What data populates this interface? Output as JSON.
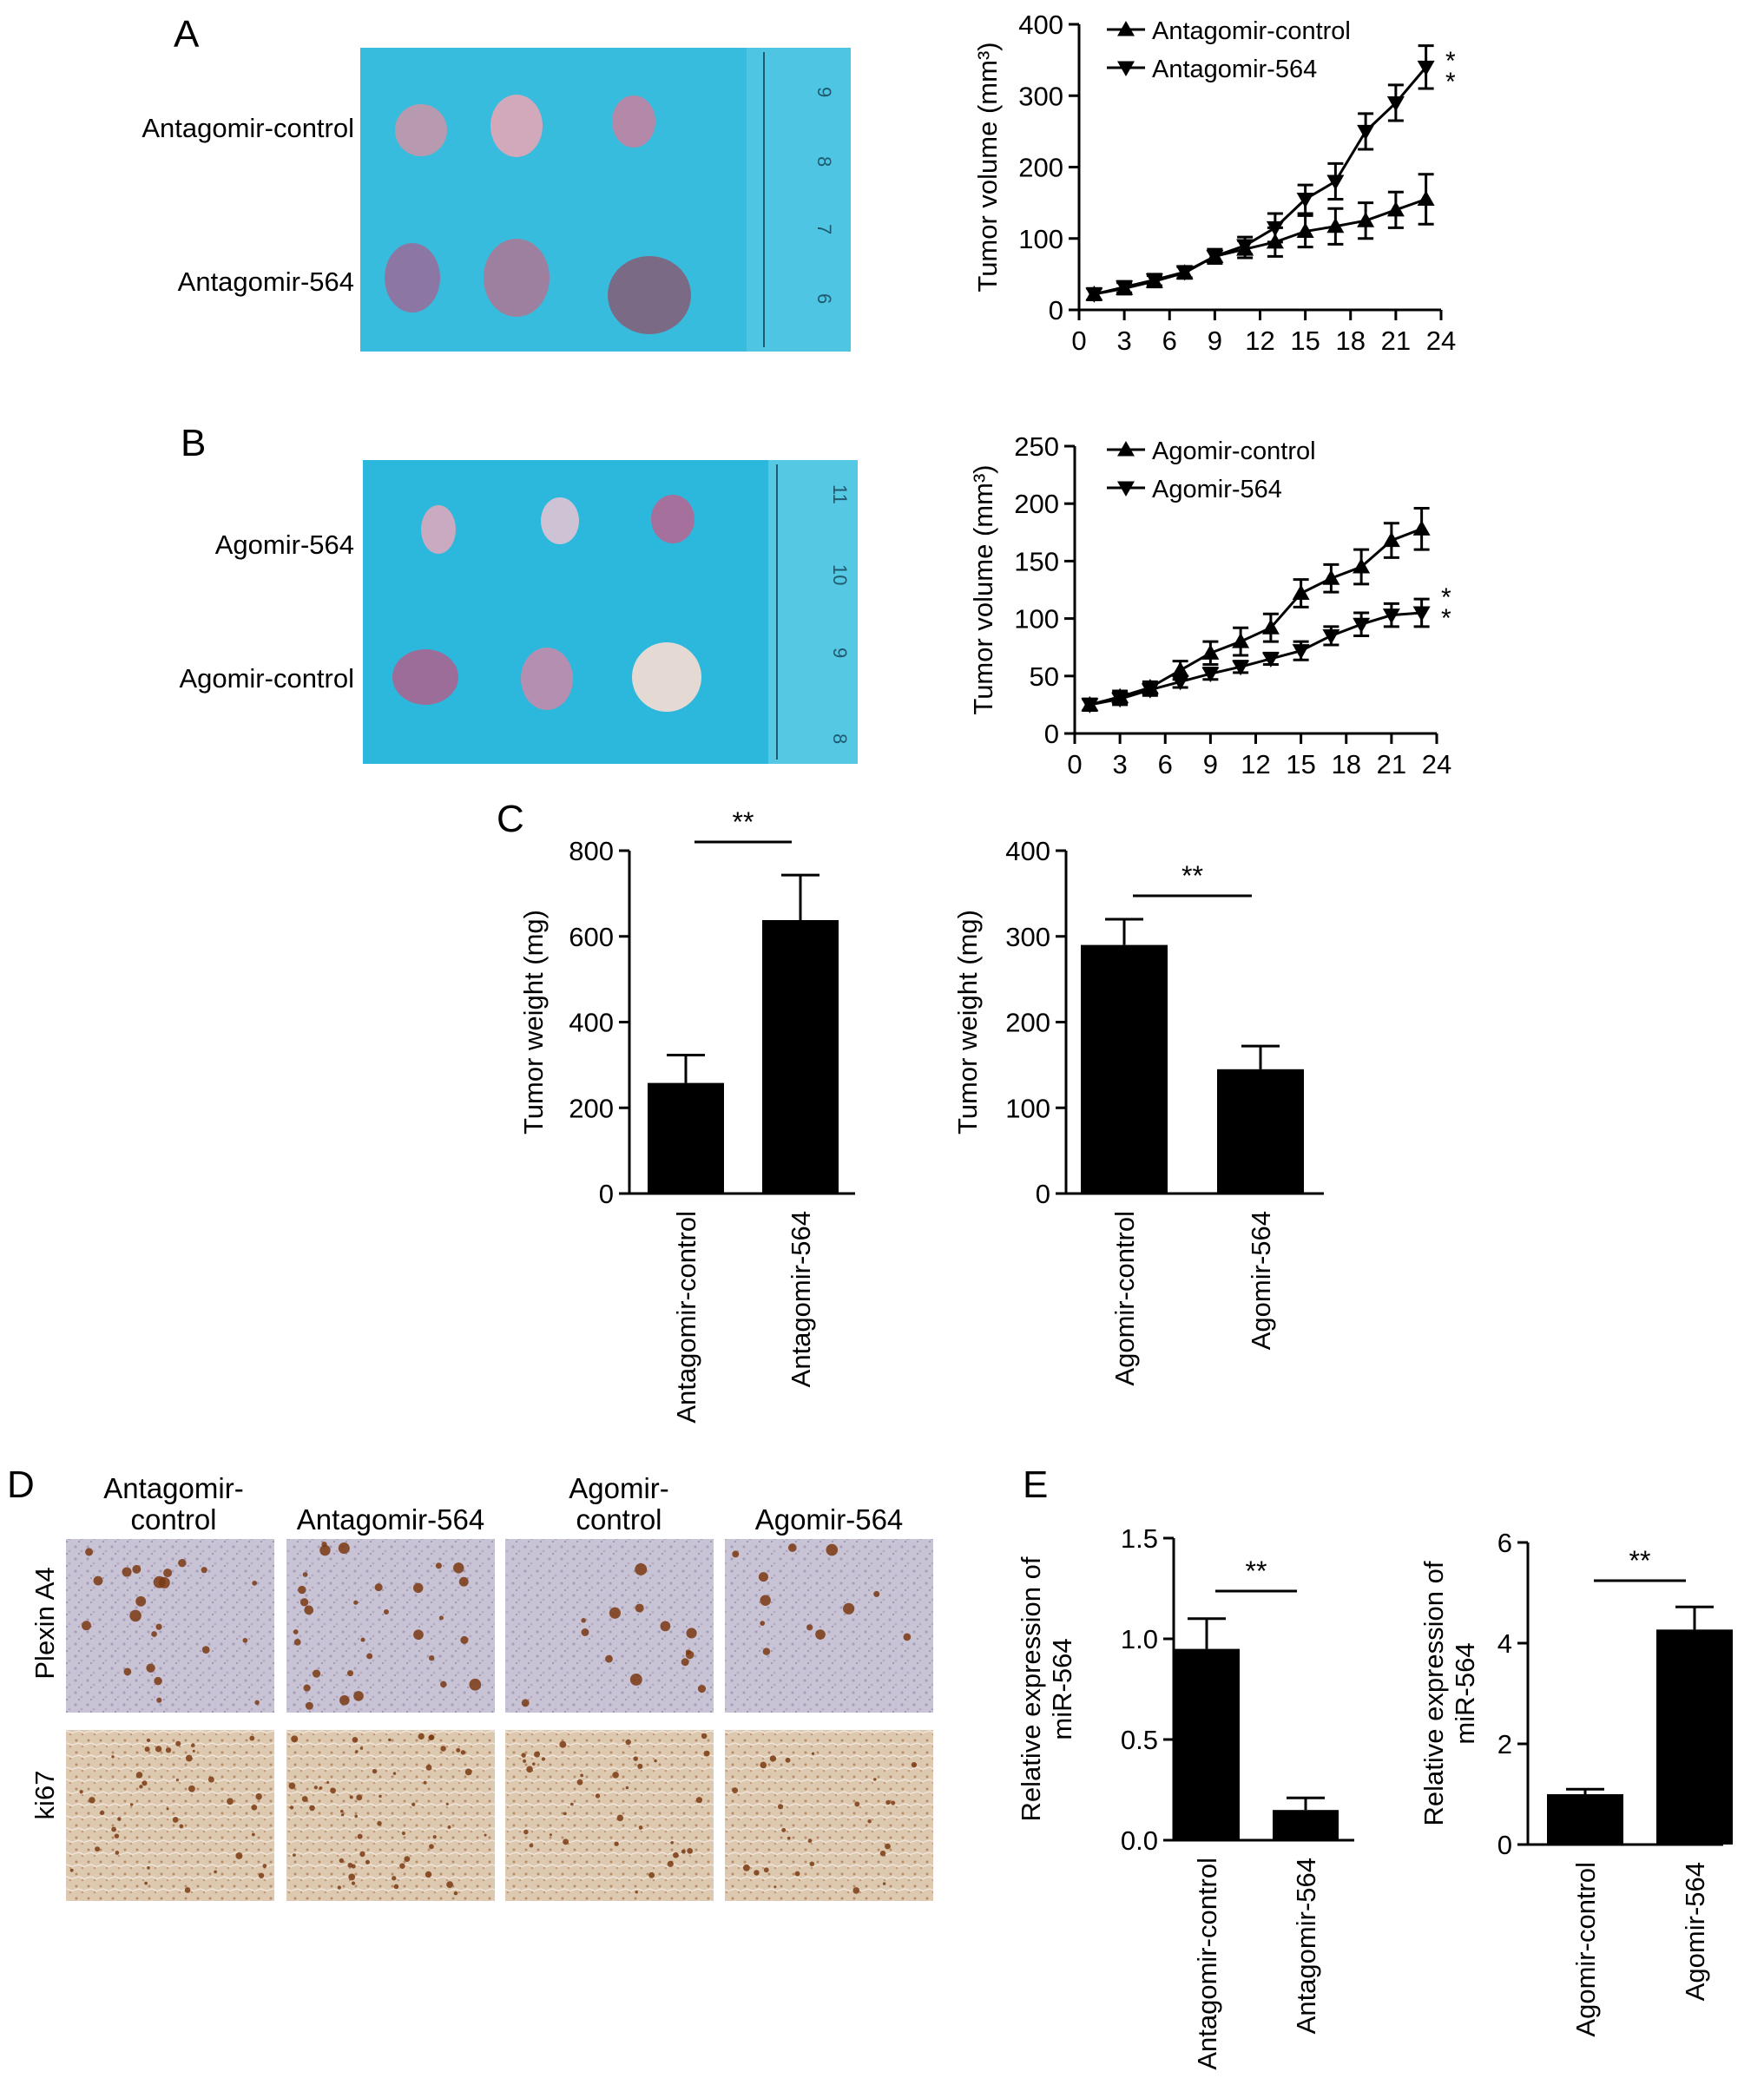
{
  "panels": {
    "A": "A",
    "B": "B",
    "C": "C",
    "D": "D",
    "E": "E"
  },
  "photo_a": {
    "rows": [
      "Antagomir-control",
      "Antagomir-564"
    ],
    "ruler": [
      "9",
      "8",
      "7",
      "6"
    ]
  },
  "photo_b": {
    "rows": [
      "Agomir-564",
      "Agomir-control"
    ],
    "ruler": [
      "11",
      "10",
      "9",
      "8"
    ]
  },
  "ihc": {
    "columns": [
      [
        "Antagomir-",
        "control"
      ],
      [
        "Antagomir-564"
      ],
      [
        "Agomir-",
        "control"
      ],
      [
        "Agomir-564"
      ]
    ],
    "rows": [
      "Plexin A4",
      "ki67"
    ]
  },
  "colors": {
    "bar": "#000000",
    "photo_bg": "#2bb8dc",
    "ihc_bg": "#c9c3d6",
    "ki67_bg": "#ddc8b0",
    "stain": "#7a3a12"
  },
  "chart_data": [
    {
      "id": "A",
      "type": "line",
      "ylabel": "Tumor volume (mm³)",
      "ylim": [
        0,
        400
      ],
      "yticks": [
        0,
        100,
        200,
        300,
        400
      ],
      "xlim": [
        0,
        24
      ],
      "xticks": [
        0,
        3,
        6,
        9,
        12,
        15,
        18,
        21,
        24
      ],
      "legend": "top-left",
      "significance": [
        "*",
        "*"
      ],
      "series": [
        {
          "name": "Antagomir-control",
          "marker": "triangle-up",
          "x": [
            1,
            3,
            5,
            7,
            9,
            11,
            13,
            15,
            17,
            19,
            21,
            23
          ],
          "y": [
            22,
            30,
            40,
            52,
            75,
            85,
            95,
            110,
            117,
            125,
            140,
            155
          ],
          "err": [
            8,
            8,
            8,
            8,
            10,
            12,
            20,
            22,
            25,
            25,
            25,
            35
          ]
        },
        {
          "name": "Antagomir-564",
          "marker": "triangle-down",
          "x": [
            1,
            3,
            5,
            7,
            9,
            11,
            13,
            15,
            17,
            19,
            21,
            23
          ],
          "y": [
            22,
            32,
            42,
            53,
            75,
            90,
            115,
            155,
            180,
            250,
            290,
            340
          ],
          "err": [
            8,
            8,
            8,
            8,
            8,
            12,
            20,
            20,
            25,
            25,
            25,
            30
          ]
        }
      ]
    },
    {
      "id": "B",
      "type": "line",
      "ylabel": "Tumor volume (mm³)",
      "ylim": [
        0,
        250
      ],
      "yticks": [
        0,
        50,
        100,
        150,
        200,
        250
      ],
      "xlim": [
        0,
        24
      ],
      "xticks": [
        0,
        3,
        6,
        9,
        12,
        15,
        18,
        21,
        24
      ],
      "legend": "top-left",
      "significance": [
        "*",
        "*"
      ],
      "series": [
        {
          "name": "Agomir-control",
          "marker": "triangle-up",
          "x": [
            1,
            3,
            5,
            7,
            9,
            11,
            13,
            15,
            17,
            19,
            21,
            23
          ],
          "y": [
            25,
            32,
            40,
            55,
            70,
            80,
            92,
            122,
            135,
            145,
            168,
            178
          ],
          "err": [
            5,
            5,
            5,
            8,
            10,
            12,
            12,
            12,
            12,
            15,
            15,
            18
          ]
        },
        {
          "name": "Agomir-564",
          "marker": "triangle-down",
          "x": [
            1,
            3,
            5,
            7,
            9,
            11,
            13,
            15,
            17,
            19,
            21,
            23
          ],
          "y": [
            25,
            30,
            38,
            45,
            52,
            58,
            65,
            72,
            85,
            95,
            103,
            105
          ],
          "err": [
            5,
            5,
            5,
            5,
            5,
            5,
            5,
            8,
            8,
            10,
            10,
            12
          ]
        }
      ]
    },
    {
      "id": "C1",
      "type": "bar",
      "ylabel": "Tumor weight (mg)",
      "ylim": [
        0,
        800
      ],
      "yticks": [
        0,
        200,
        400,
        600,
        800
      ],
      "categories": [
        "Antagomir-control",
        "Antagomir-564"
      ],
      "values": [
        258,
        638
      ],
      "err": [
        65,
        105
      ],
      "significance": "**"
    },
    {
      "id": "C2",
      "type": "bar",
      "ylabel": "Tumor weight (mg)",
      "ylim": [
        0,
        400
      ],
      "yticks": [
        0,
        100,
        200,
        300,
        400
      ],
      "categories": [
        "Agomir-control",
        "Agomir-564"
      ],
      "values": [
        290,
        145
      ],
      "err": [
        30,
        27
      ],
      "significance": "**"
    },
    {
      "id": "E1",
      "type": "bar",
      "ylabel": [
        "Relative expression of",
        "miR-564"
      ],
      "ylim": [
        0,
        1.5
      ],
      "yticks": [
        "0.0",
        "0.5",
        "1.0",
        "1.5"
      ],
      "categories": [
        "Antagomir-control",
        "Antagomir-564"
      ],
      "values": [
        0.95,
        0.15
      ],
      "err": [
        0.15,
        0.06
      ],
      "significance": "**"
    },
    {
      "id": "E2",
      "type": "bar",
      "ylabel": [
        "Relative expression of",
        "miR-564"
      ],
      "ylim": [
        0,
        6
      ],
      "yticks": [
        "0",
        "2",
        "4",
        "6"
      ],
      "categories": [
        "Agomir-control",
        "Agomir-564"
      ],
      "values": [
        1.0,
        4.27
      ],
      "err": [
        0.1,
        0.45
      ],
      "significance": "**"
    }
  ]
}
